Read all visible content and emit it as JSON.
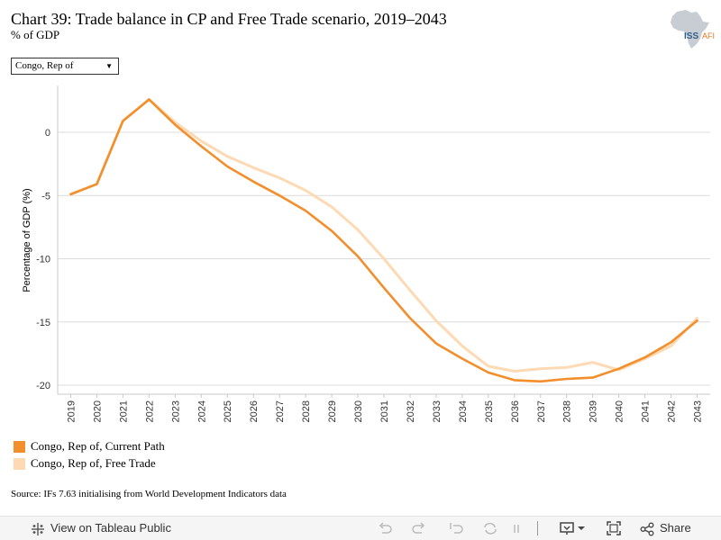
{
  "header": {
    "title": "Chart 39: Trade balance in CP and Free Trade scenario, 2019–2043",
    "subtitle": "% of GDP",
    "logo_text": "ISS AFRICA"
  },
  "filter": {
    "selected": "Congo, Rep of"
  },
  "chart_data": {
    "type": "line",
    "title": "Chart 39: Trade balance in CP and Free Trade scenario, 2019–2043",
    "subtitle": "% of GDP",
    "xlabel": "",
    "ylabel": "Percentage of GDP (%)",
    "ylim": [
      -20.8,
      3.8
    ],
    "yticks": [
      0,
      -5,
      -10,
      -15,
      -20
    ],
    "ytick_labels": [
      "0",
      "-5",
      "-10",
      "-15",
      "-20"
    ],
    "grid": true,
    "legend_position": "bottom-left",
    "x": [
      "2019",
      "2020",
      "2021",
      "2022",
      "2023",
      "2024",
      "2025",
      "2026",
      "2027",
      "2028",
      "2029",
      "2030",
      "2031",
      "2032",
      "2033",
      "2034",
      "2035",
      "2036",
      "2037",
      "2038",
      "2039",
      "2040",
      "2041",
      "2042",
      "2043"
    ],
    "series": [
      {
        "name": "Congo, Rep of, Current Path",
        "color": "#f28e2b",
        "values": [
          -4.9,
          -4.1,
          0.9,
          2.6,
          0.6,
          -1.1,
          -2.7,
          -3.9,
          -5.0,
          -6.2,
          -7.8,
          -9.8,
          -12.3,
          -14.7,
          -16.7,
          -17.9,
          -19.0,
          -19.6,
          -19.7,
          -19.5,
          -19.4,
          -18.7,
          -17.8,
          -16.6,
          -14.9
        ]
      },
      {
        "name": "Congo, Rep of, Free Trade",
        "color": "#fdd9b4",
        "values": [
          -4.9,
          -4.1,
          0.9,
          2.6,
          0.8,
          -0.7,
          -1.9,
          -2.8,
          -3.6,
          -4.6,
          -5.9,
          -7.7,
          -10.0,
          -12.5,
          -14.9,
          -16.9,
          -18.5,
          -18.9,
          -18.7,
          -18.6,
          -18.2,
          -18.8,
          -17.9,
          -16.9,
          -14.7
        ]
      }
    ]
  },
  "legend": {
    "items": [
      {
        "label": "Congo, Rep of, Current Path",
        "color": "#f28e2b"
      },
      {
        "label": "Congo, Rep of, Free Trade",
        "color": "#fdd9b4"
      }
    ]
  },
  "source": "Source: IFs 7.63 initialising from World Development Indicators data",
  "toolbar": {
    "view_label": "View on Tableau Public",
    "share_label": "Share"
  }
}
